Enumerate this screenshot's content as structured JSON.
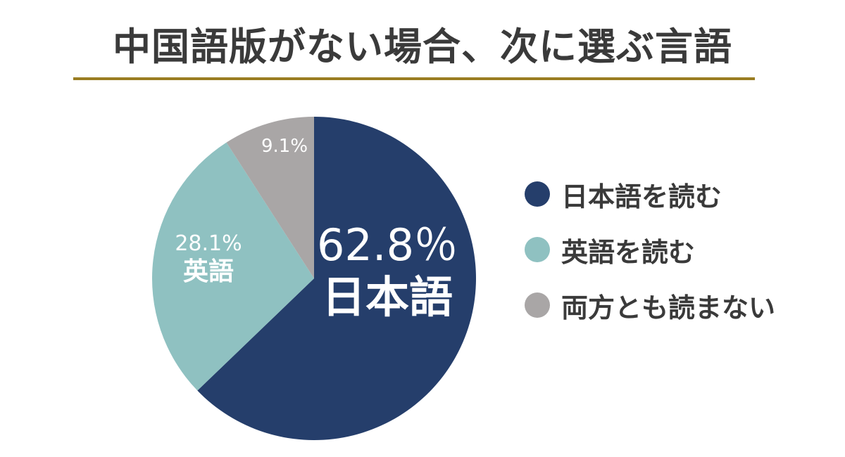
{
  "chart_data": {
    "type": "pie",
    "title": "中国語版がない場合、次に選ぶ言語",
    "slices": [
      {
        "name": "日本語を読む",
        "value": 62.8,
        "color": "#253e6b",
        "label_value": "62.8％",
        "label_text": "日本語",
        "label_color": "#ffffff"
      },
      {
        "name": "英語を読む",
        "value": 28.1,
        "color": "#8fc1c1",
        "label_value": "28.1%",
        "label_text": "英語",
        "label_color": "#ffffff"
      },
      {
        "name": "両方とも読まない",
        "value": 9.1,
        "color": "#a9a6a6",
        "label_value": "9.1%",
        "label_text": "",
        "label_color": "#ffffff"
      }
    ],
    "legend_position": "right"
  }
}
